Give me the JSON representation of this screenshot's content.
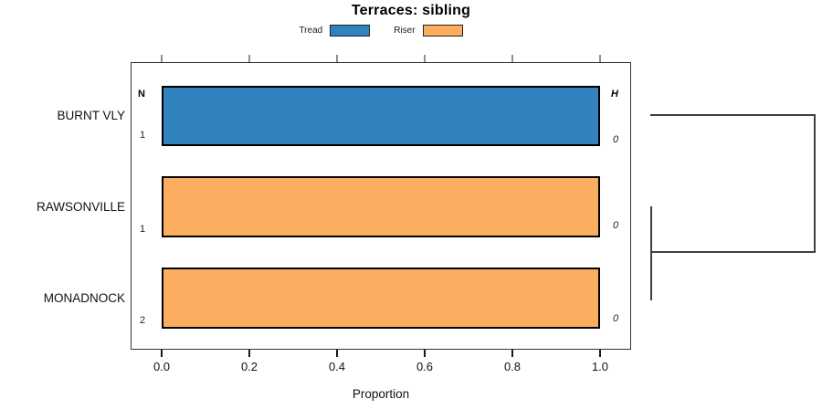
{
  "title": "Terraces: sibling",
  "legend": {
    "items": [
      {
        "label": "Tread",
        "color": "#3182BD"
      },
      {
        "label": "Riser",
        "color": "#FBAE60"
      }
    ]
  },
  "axis": {
    "label": "Proportion",
    "ticks": [
      "0.0",
      "0.2",
      "0.4",
      "0.6",
      "0.8",
      "1.0"
    ]
  },
  "columns": {
    "n_header": "N",
    "h_header": "H"
  },
  "rows": [
    {
      "label": "BURNT VLY",
      "n": "1",
      "h": "0",
      "value": 1.0,
      "series": "Tread",
      "color": "#3182BD"
    },
    {
      "label": "RAWSONVILLE",
      "n": "1",
      "h": "0",
      "value": 1.0,
      "series": "Riser",
      "color": "#FBAE60"
    },
    {
      "label": "MONADNOCK",
      "n": "2",
      "h": "0",
      "value": 1.0,
      "series": "Riser",
      "color": "#FBAE60"
    }
  ],
  "chart_data": {
    "type": "bar",
    "orientation": "horizontal",
    "title": "Terraces: sibling",
    "xlabel": "Proportion",
    "xlim": [
      0,
      1.0
    ],
    "xticks": [
      0.0,
      0.2,
      0.4,
      0.6,
      0.8,
      1.0
    ],
    "categories": [
      "BURNT VLY",
      "RAWSONVILLE",
      "MONADNOCK"
    ],
    "series": [
      {
        "name": "Tread",
        "color": "#3182BD",
        "values": [
          1.0,
          0,
          0
        ]
      },
      {
        "name": "Riser",
        "color": "#FBAE60",
        "values": [
          0,
          1.0,
          1.0
        ]
      }
    ],
    "annotations": {
      "N": [
        1,
        1,
        2
      ],
      "H": [
        0,
        0,
        0
      ]
    },
    "legend_position": "top-center",
    "grid": false,
    "dendrogram": {
      "side": "right",
      "merges": [
        {
          "members": [
            "RAWSONVILLE",
            "MONADNOCK"
          ],
          "height": "~0"
        },
        {
          "members": [
            "BURNT VLY",
            "RAWSONVILLE+MONADNOCK"
          ],
          "height": "max"
        }
      ]
    }
  }
}
